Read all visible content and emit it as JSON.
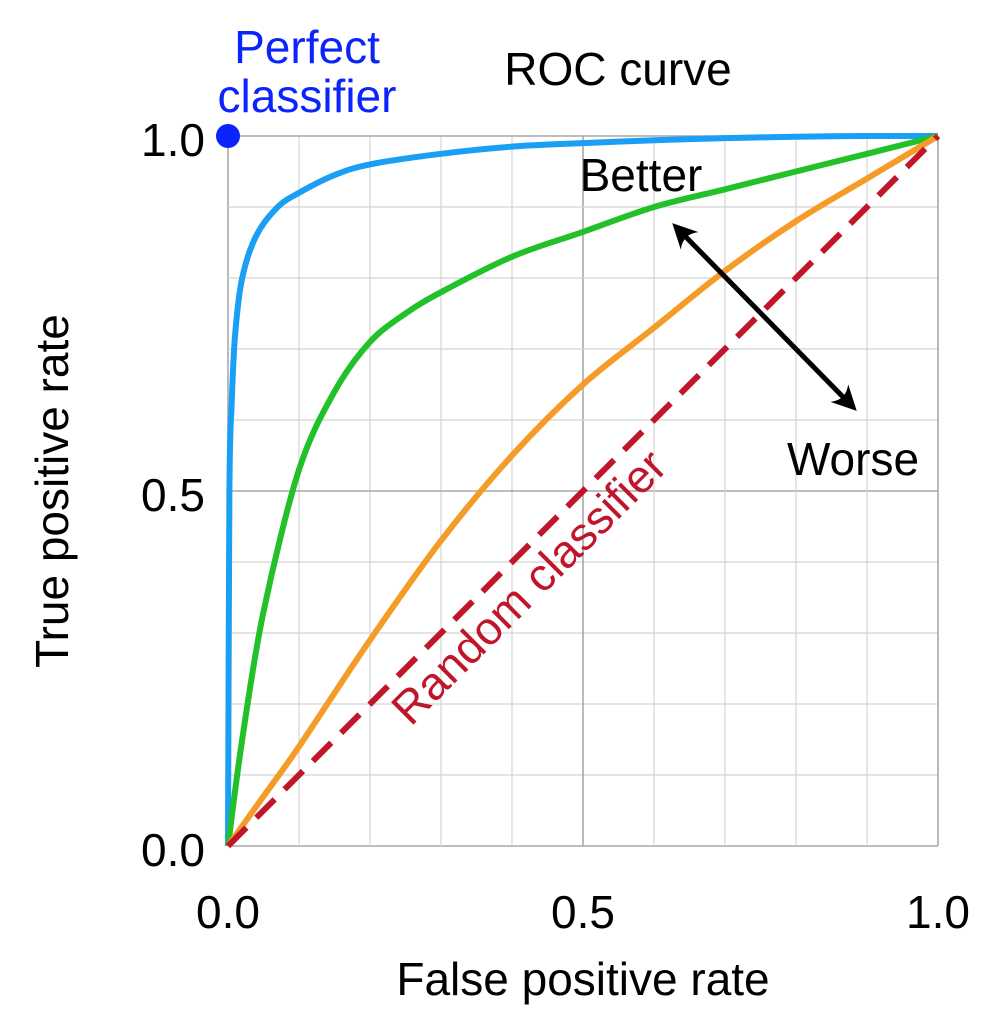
{
  "chart_data": {
    "type": "line",
    "title": "ROC curve",
    "xlabel": "False positive rate",
    "ylabel": "True positive rate",
    "xlim": [
      0,
      1
    ],
    "ylim": [
      0,
      1
    ],
    "grid": true,
    "x_ticks": [
      "0.0",
      "0.5",
      "1.0"
    ],
    "y_ticks": [
      "0.0",
      "0.5",
      "1.0"
    ],
    "series": [
      {
        "color": "#1a9ff5",
        "x": [
          0,
          0.002,
          0.005,
          0.01,
          0.02,
          0.04,
          0.07,
          0.1,
          0.15,
          0.2,
          0.3,
          0.4,
          0.5,
          0.6,
          0.7,
          0.8,
          0.9,
          1.0
        ],
        "y": [
          0,
          0.5,
          0.62,
          0.72,
          0.8,
          0.86,
          0.9,
          0.92,
          0.945,
          0.96,
          0.975,
          0.985,
          0.99,
          0.994,
          0.997,
          0.999,
          1.0,
          1.0
        ]
      },
      {
        "color": "#22c12a",
        "x": [
          0,
          0.02,
          0.05,
          0.1,
          0.15,
          0.2,
          0.25,
          0.3,
          0.4,
          0.5,
          0.6,
          0.7,
          0.8,
          0.9,
          1.0
        ],
        "y": [
          0,
          0.15,
          0.33,
          0.53,
          0.64,
          0.71,
          0.75,
          0.78,
          0.83,
          0.865,
          0.9,
          0.925,
          0.95,
          0.975,
          1.0
        ]
      },
      {
        "color": "#f59b27",
        "x": [
          0,
          0.05,
          0.1,
          0.2,
          0.3,
          0.4,
          0.5,
          0.6,
          0.7,
          0.8,
          0.9,
          1.0
        ],
        "y": [
          0,
          0.07,
          0.14,
          0.29,
          0.43,
          0.55,
          0.65,
          0.73,
          0.81,
          0.88,
          0.94,
          1.0
        ]
      },
      {
        "name": "Random classifier",
        "color": "#c0162c",
        "dashed": true,
        "x": [
          0,
          1
        ],
        "y": [
          0,
          1
        ]
      }
    ],
    "points": [
      {
        "name": "Perfect classifier",
        "color": "#0b24fb",
        "x": 0,
        "y": 1
      }
    ],
    "annotations": {
      "perfect_line1": "Perfect",
      "perfect_line2": "classifier",
      "better": "Better",
      "worse": "Worse",
      "random": "Random classifier"
    }
  }
}
